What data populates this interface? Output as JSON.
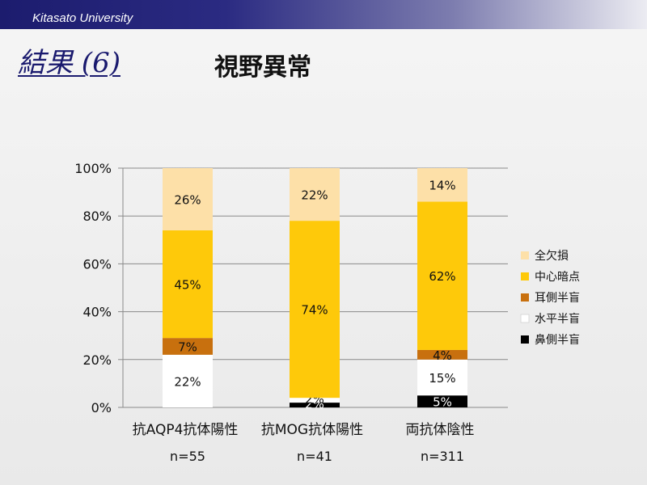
{
  "header": {
    "banner_text": "Kitasato University"
  },
  "slide": {
    "section_title": "結果 (6)",
    "title": "視野異常"
  },
  "chart_data": {
    "type": "bar",
    "stacked": true,
    "percent": true,
    "categories": [
      "抗AQP4抗体陽性",
      "抗MOG抗体陽性",
      "両抗体陰性"
    ],
    "sample_sizes": [
      "n=55",
      "n=41",
      "n=311"
    ],
    "series": [
      {
        "name": "鼻側半盲",
        "color": "#000000",
        "values": [
          0,
          2,
          5
        ],
        "labels": [
          "",
          "2%",
          "5%"
        ]
      },
      {
        "name": "水平半盲",
        "color": "#ffffff",
        "values": [
          22,
          2,
          15
        ],
        "labels": [
          "22%",
          "2%",
          "15%"
        ]
      },
      {
        "name": "耳側半盲",
        "color": "#c8700e",
        "values": [
          7,
          0,
          4
        ],
        "labels": [
          "7%",
          "",
          "4%"
        ]
      },
      {
        "name": "中心暗点",
        "color": "#fec90a",
        "values": [
          45,
          74,
          62
        ],
        "labels": [
          "45%",
          "74%",
          "62%"
        ]
      },
      {
        "name": "全欠損",
        "color": "#fde0a8",
        "values": [
          26,
          22,
          14
        ],
        "labels": [
          "26%",
          "22%",
          "14%"
        ]
      }
    ],
    "legend_order": [
      "全欠損",
      "中心暗点",
      "耳側半盲",
      "水平半盲",
      "鼻側半盲"
    ],
    "ylim": [
      0,
      100
    ],
    "yticks": [
      "0%",
      "20%",
      "40%",
      "60%",
      "80%",
      "100%"
    ],
    "grid": true,
    "legend_position": "right"
  }
}
